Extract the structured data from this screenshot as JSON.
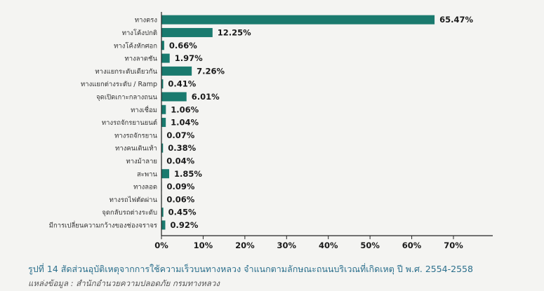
{
  "chart_data": {
    "type": "bar",
    "orientation": "horizontal",
    "categories": [
      "ทางตรง",
      "ทางโค้งปกติ",
      "ทางโค้งหักศอก",
      "ทางลาดชัน",
      "ทางแยกระดับเดียวกัน",
      "ทางแยกต่างระดับ / Ramp",
      "จุดเปิดเกาะกลางถนน",
      "ทางเชื่อม",
      "ทางรถจักรยานยนต์",
      "ทางรถจักรยาน",
      "ทางคนเดินเท้า",
      "ทางม้าลาย",
      "สะพาน",
      "ทางลอด",
      "ทางรถไฟตัดผ่าน",
      "จุดกลับรถต่างระดับ",
      "มีการเปลี่ยนความกว้างของช่องจราจร"
    ],
    "values": [
      65.47,
      12.25,
      0.66,
      1.97,
      7.26,
      0.41,
      6.01,
      1.06,
      1.04,
      0.07,
      0.38,
      0.04,
      1.85,
      0.09,
      0.06,
      0.45,
      0.92
    ],
    "value_labels": [
      "65.47%",
      "12.25%",
      "0.66%",
      "1.97%",
      "7.26%",
      "0.41%",
      "6.01%",
      "1.06%",
      "1.04%",
      "0.07%",
      "0.38%",
      "0.04%",
      "1.85%",
      "0.09%",
      "0.06%",
      "0.45%",
      "0.92%"
    ],
    "xlim": [
      0,
      70
    ],
    "x_ticks": [
      0,
      10,
      20,
      30,
      40,
      50,
      60,
      70
    ],
    "x_tick_labels": [
      "0%",
      "10%",
      "20%",
      "30%",
      "40%",
      "50%",
      "60%",
      "70%"
    ],
    "bar_color": "#1a7a6e",
    "grid": false
  },
  "caption": "รูปที่ 14 สัดส่วนอุบัติเหตุจากการใช้ความเร็วบนทางหลวง จำแนกตามลักษณะถนนบริเวณที่เกิดเหตุ ปี พ.ศ. 2554-2558",
  "source": "แหล่งข้อมูล  : สำนักอำนวยความปลอดภัย กรมทางหลวง"
}
